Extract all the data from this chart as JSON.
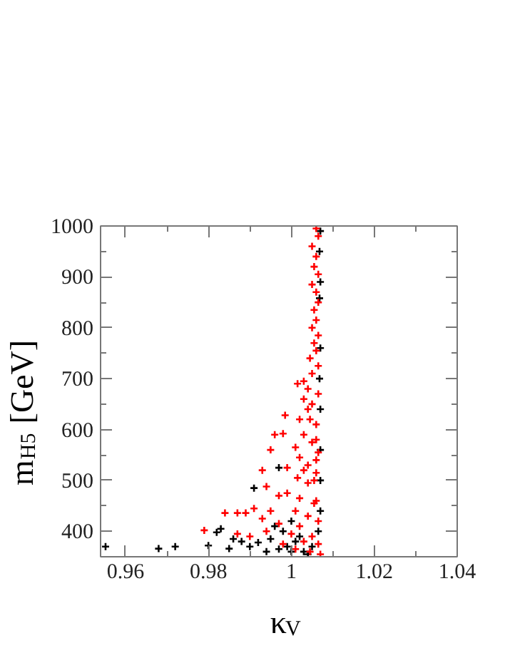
{
  "chart_data": {
    "type": "scatter",
    "xlabel": "κ$_{V}$",
    "ylabel": "m$_{H5}$ [GeV]",
    "xlim": [
      0.954,
      1.04
    ],
    "ylim": [
      350,
      1000
    ],
    "xticks": [
      0.96,
      0.98,
      1,
      1.02,
      1.04
    ],
    "yticks": [
      400,
      500,
      600,
      700,
      800,
      900,
      1000
    ],
    "marker": "cross",
    "grid": false,
    "series": [
      {
        "color": "#000000",
        "x": [
          0.9552,
          0.968,
          0.972,
          0.98,
          0.982,
          0.983,
          0.985,
          0.986,
          0.988,
          0.99,
          0.992,
          0.994,
          0.995,
          0.997,
          0.998,
          0.999,
          1.0,
          1.001,
          1.002,
          1.003,
          0.996,
          1.0,
          0.997,
          0.991,
          1.007,
          1.0068,
          1.007,
          1.0068,
          1.007,
          1.0068,
          1.007,
          1.007,
          1.007,
          1.007,
          1.0065,
          1.005,
          1.004
        ],
        "values": [
          370,
          366,
          370,
          372,
          398,
          405,
          366,
          385,
          380,
          370,
          378,
          360,
          385,
          365,
          400,
          370,
          360,
          380,
          390,
          360,
          410,
          420,
          525,
          485,
          640,
          700,
          760,
          858,
          890,
          950,
          990,
          560,
          500,
          440,
          400,
          370,
          355
        ]
      },
      {
        "color": "#ff0000",
        "x": [
          1.006,
          1.0065,
          1.005,
          1.006,
          1.0055,
          1.0065,
          1.005,
          1.006,
          1.0065,
          1.0055,
          1.006,
          1.005,
          1.0065,
          1.0055,
          1.006,
          1.0045,
          1.0065,
          1.005,
          1.003,
          1.0015,
          1.004,
          1.0065,
          1.003,
          1.005,
          0.9985,
          1.004,
          1.002,
          1.006,
          0.996,
          0.998,
          1.003,
          1.005,
          1.001,
          1.0065,
          0.995,
          1.002,
          1.004,
          0.993,
          0.999,
          1.006,
          1.0015,
          0.994,
          1.004,
          0.997,
          0.999,
          1.002,
          1.0055,
          0.984,
          0.987,
          0.989,
          0.991,
          0.995,
          1.001,
          1.004,
          1.0065,
          0.993,
          0.997,
          1.002,
          0.979,
          0.987,
          0.99,
          0.994,
          1.0,
          1.005,
          1.003,
          1.0065,
          0.998,
          1.001,
          1.0045,
          1.007,
          1.006,
          1.006,
          1.0045,
          1.0055,
          1.003,
          1.006
        ],
        "values": [
          995,
          980,
          960,
          940,
          920,
          905,
          885,
          870,
          850,
          835,
          815,
          800,
          785,
          770,
          755,
          740,
          725,
          710,
          695,
          690,
          680,
          670,
          660,
          650,
          628,
          640,
          620,
          610,
          590,
          592,
          590,
          575,
          565,
          555,
          560,
          545,
          530,
          520,
          525,
          515,
          505,
          488,
          495,
          470,
          475,
          465,
          455,
          436,
          436,
          436,
          445,
          440,
          440,
          430,
          420,
          425,
          415,
          410,
          402,
          395,
          390,
          400,
          395,
          390,
          380,
          375,
          375,
          365,
          360,
          355,
          460,
          580,
          620,
          500,
          520,
          540
        ]
      }
    ]
  }
}
